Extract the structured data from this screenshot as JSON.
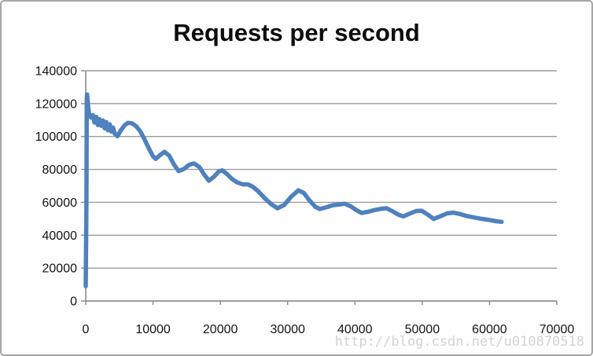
{
  "page": {
    "watermark": "http://blog.csdn.net/u010870518"
  },
  "chart_data": {
    "type": "line",
    "title": "Requests per second",
    "xlabel": "",
    "ylabel": "",
    "xlim": [
      0,
      70000
    ],
    "ylim": [
      0,
      140000
    ],
    "x_ticks": [
      0,
      10000,
      20000,
      30000,
      40000,
      50000,
      60000,
      70000
    ],
    "y_ticks": [
      0,
      20000,
      40000,
      60000,
      80000,
      100000,
      120000,
      140000
    ],
    "grid": "horizontal-only",
    "legend": "none",
    "colors": {
      "line": "#4F81BD",
      "gridline": "#9c9c9c",
      "axis": "#8b8b8b",
      "tick_label": "#141414",
      "title": "#0d0d0d",
      "watermark": "#d3d3d3"
    },
    "series": [
      {
        "name": "Requests per second",
        "points": [
          [
            0,
            9000
          ],
          [
            100,
            60000
          ],
          [
            150,
            122000
          ],
          [
            200,
            125500
          ],
          [
            350,
            119000
          ],
          [
            500,
            113500
          ],
          [
            800,
            111500
          ],
          [
            1050,
            113000
          ],
          [
            1300,
            108500
          ],
          [
            1550,
            112000
          ],
          [
            1800,
            107000
          ],
          [
            2050,
            110500
          ],
          [
            2300,
            106500
          ],
          [
            2550,
            109800
          ],
          [
            2800,
            105000
          ],
          [
            3050,
            108800
          ],
          [
            3300,
            103800
          ],
          [
            3550,
            107500
          ],
          [
            3800,
            103000
          ],
          [
            4050,
            105500
          ],
          [
            4300,
            101800
          ],
          [
            4700,
            100200
          ],
          [
            5200,
            103600
          ],
          [
            5800,
            106900
          ],
          [
            6300,
            108300
          ],
          [
            6900,
            108000
          ],
          [
            7500,
            106200
          ],
          [
            8100,
            103200
          ],
          [
            8700,
            98600
          ],
          [
            9400,
            92600
          ],
          [
            10000,
            87900
          ],
          [
            10400,
            86400
          ],
          [
            11000,
            88600
          ],
          [
            11700,
            90700
          ],
          [
            12400,
            88400
          ],
          [
            13100,
            83100
          ],
          [
            13800,
            79000
          ],
          [
            14600,
            80300
          ],
          [
            15400,
            82900
          ],
          [
            16100,
            83600
          ],
          [
            16900,
            81400
          ],
          [
            17600,
            76900
          ],
          [
            18300,
            73100
          ],
          [
            19100,
            75700
          ],
          [
            19800,
            78900
          ],
          [
            20300,
            79400
          ],
          [
            21000,
            77100
          ],
          [
            21700,
            74300
          ],
          [
            22500,
            72100
          ],
          [
            23300,
            70900
          ],
          [
            24100,
            70900
          ],
          [
            24800,
            69500
          ],
          [
            25600,
            66800
          ],
          [
            26600,
            62500
          ],
          [
            27600,
            58700
          ],
          [
            28500,
            56400
          ],
          [
            29500,
            58400
          ],
          [
            30500,
            63300
          ],
          [
            31600,
            67300
          ],
          [
            32400,
            65700
          ],
          [
            33200,
            61400
          ],
          [
            34100,
            57300
          ],
          [
            34800,
            55900
          ],
          [
            35700,
            56900
          ],
          [
            36700,
            58200
          ],
          [
            37700,
            58700
          ],
          [
            38500,
            59100
          ],
          [
            39400,
            57500
          ],
          [
            40200,
            55300
          ],
          [
            41000,
            53500
          ],
          [
            41900,
            54200
          ],
          [
            42900,
            55300
          ],
          [
            44000,
            56100
          ],
          [
            44700,
            56400
          ],
          [
            45600,
            54500
          ],
          [
            46500,
            52400
          ],
          [
            47200,
            51400
          ],
          [
            48100,
            53100
          ],
          [
            49100,
            54700
          ],
          [
            49900,
            54900
          ],
          [
            50800,
            52600
          ],
          [
            51700,
            49900
          ],
          [
            52700,
            51500
          ],
          [
            53700,
            53300
          ],
          [
            54600,
            53700
          ],
          [
            55600,
            52900
          ],
          [
            56600,
            51700
          ],
          [
            57700,
            50800
          ],
          [
            58800,
            50000
          ],
          [
            59900,
            49300
          ],
          [
            61000,
            48500
          ],
          [
            61800,
            48100
          ]
        ]
      }
    ]
  }
}
